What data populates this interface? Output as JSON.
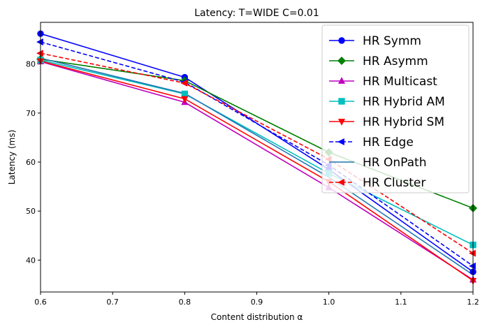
{
  "chart_data": {
    "type": "line",
    "title": "Latency: T=WIDE C=0.01",
    "xlabel": "Content distribution α",
    "ylabel": "Latency (ms)",
    "xlim": [
      0.6,
      1.2
    ],
    "ylim": [
      33.5,
      88.5
    ],
    "xticks": [
      0.6,
      0.7,
      0.8,
      0.9,
      1.0,
      1.1,
      1.2
    ],
    "xtick_labels": [
      "0.6",
      "0.7",
      "0.8",
      "0.9",
      "1.0",
      "1.1",
      "1.2"
    ],
    "yticks": [
      40,
      50,
      60,
      70,
      80
    ],
    "ytick_labels": [
      "40",
      "50",
      "60",
      "70",
      "80"
    ],
    "grid": false,
    "legend_position": "top-right",
    "x": [
      0.6,
      0.8,
      1.0,
      1.2
    ],
    "series": [
      {
        "name": "HR Symm",
        "values": [
          86.2,
          77.3,
          58.5,
          37.6
        ],
        "color": "#0000ff",
        "marker": "circle",
        "dash": "solid"
      },
      {
        "name": "HR Asymm",
        "values": [
          81.0,
          76.6,
          62.0,
          50.6
        ],
        "color": "#008000",
        "marker": "diamond",
        "dash": "solid"
      },
      {
        "name": "HR Multicast",
        "values": [
          80.5,
          72.2,
          54.8,
          36.0
        ],
        "color": "#bf00bf",
        "marker": "triangle-up",
        "dash": "solid"
      },
      {
        "name": "HR Hybrid AM",
        "values": [
          80.8,
          73.9,
          57.7,
          43.1
        ],
        "color": "#00bfbf",
        "marker": "square",
        "dash": "solid"
      },
      {
        "name": "HR Hybrid SM",
        "values": [
          80.6,
          72.9,
          56.0,
          35.8
        ],
        "color": "#ff0000",
        "marker": "triangle-down",
        "dash": "solid"
      },
      {
        "name": "HR Edge",
        "values": [
          84.5,
          76.3,
          59.4,
          38.8
        ],
        "color": "#0000ff",
        "marker": "triangle-left",
        "dash": "dashed"
      },
      {
        "name": "HR OnPath",
        "values": [
          81.2,
          74.0,
          56.9,
          37.0
        ],
        "color": "#1f77b4",
        "marker": "none",
        "dash": "solid"
      },
      {
        "name": "HR Cluster",
        "values": [
          82.2,
          76.1,
          60.6,
          41.4
        ],
        "color": "#ff0000",
        "marker": "triangle-left",
        "dash": "dashed"
      }
    ]
  }
}
